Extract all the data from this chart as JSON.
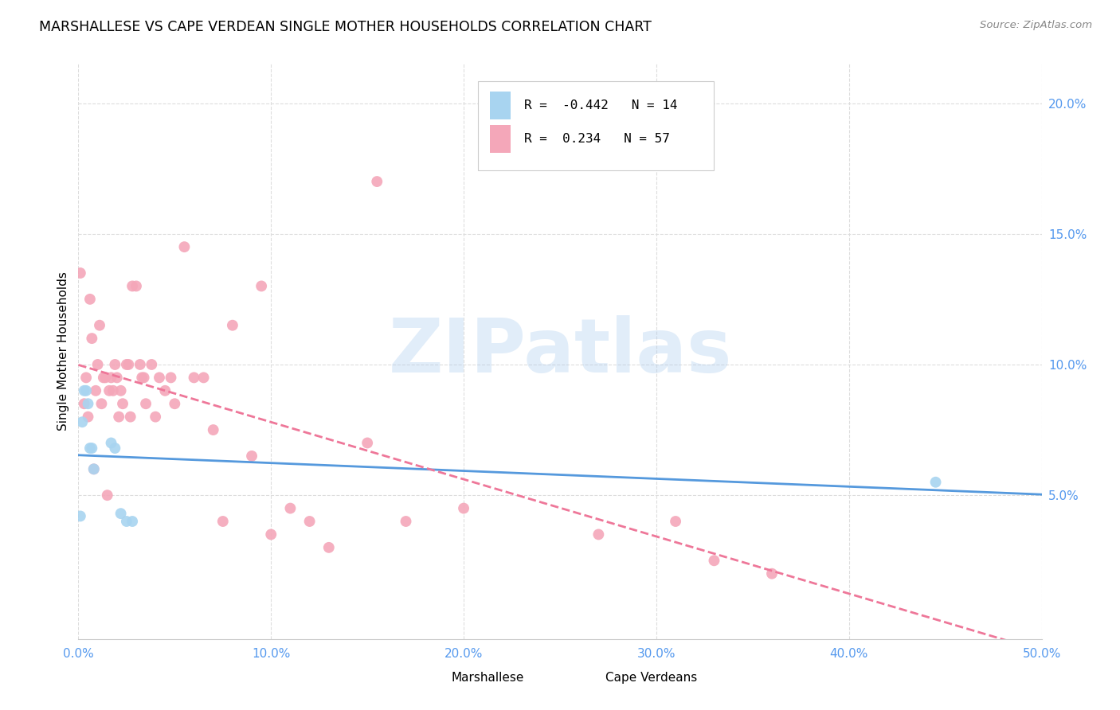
{
  "title": "MARSHALLESE VS CAPE VERDEAN SINGLE MOTHER HOUSEHOLDS CORRELATION CHART",
  "source": "Source: ZipAtlas.com",
  "ylabel": "Single Mother Households",
  "marshallese_R": -0.442,
  "marshallese_N": 14,
  "capeverdean_R": 0.234,
  "capeverdean_N": 57,
  "marshallese_color": "#a8d4f0",
  "capeverdean_color": "#f4a7b9",
  "marshallese_line_color": "#5599dd",
  "capeverdean_line_color": "#ee7799",
  "watermark_text": "ZIPatlas",
  "xlim": [
    0.0,
    0.5
  ],
  "ylim": [
    -0.005,
    0.215
  ],
  "x_ticks": [
    0.0,
    0.1,
    0.2,
    0.3,
    0.4,
    0.5
  ],
  "y_ticks_right": [
    0.05,
    0.1,
    0.15,
    0.2
  ],
  "marshallese_x": [
    0.001,
    0.002,
    0.003,
    0.004,
    0.005,
    0.006,
    0.007,
    0.008,
    0.017,
    0.019,
    0.022,
    0.025,
    0.028,
    0.445
  ],
  "marshallese_y": [
    0.042,
    0.078,
    0.09,
    0.09,
    0.085,
    0.068,
    0.068,
    0.06,
    0.07,
    0.068,
    0.043,
    0.04,
    0.04,
    0.055
  ],
  "capeverdean_x": [
    0.001,
    0.003,
    0.004,
    0.005,
    0.006,
    0.007,
    0.008,
    0.009,
    0.01,
    0.011,
    0.012,
    0.013,
    0.014,
    0.015,
    0.016,
    0.017,
    0.018,
    0.019,
    0.02,
    0.021,
    0.022,
    0.023,
    0.025,
    0.026,
    0.027,
    0.028,
    0.03,
    0.032,
    0.033,
    0.034,
    0.035,
    0.038,
    0.04,
    0.042,
    0.045,
    0.048,
    0.05,
    0.055,
    0.06,
    0.065,
    0.07,
    0.075,
    0.08,
    0.09,
    0.095,
    0.1,
    0.11,
    0.12,
    0.13,
    0.15,
    0.155,
    0.17,
    0.2,
    0.27,
    0.31,
    0.33,
    0.36
  ],
  "capeverdean_y": [
    0.135,
    0.085,
    0.095,
    0.08,
    0.125,
    0.11,
    0.06,
    0.09,
    0.1,
    0.115,
    0.085,
    0.095,
    0.095,
    0.05,
    0.09,
    0.095,
    0.09,
    0.1,
    0.095,
    0.08,
    0.09,
    0.085,
    0.1,
    0.1,
    0.08,
    0.13,
    0.13,
    0.1,
    0.095,
    0.095,
    0.085,
    0.1,
    0.08,
    0.095,
    0.09,
    0.095,
    0.085,
    0.145,
    0.095,
    0.095,
    0.075,
    0.04,
    0.115,
    0.065,
    0.13,
    0.035,
    0.045,
    0.04,
    0.03,
    0.07,
    0.17,
    0.04,
    0.045,
    0.035,
    0.04,
    0.025,
    0.02
  ],
  "legend_R_marshallese": "R = -0.442",
  "legend_N_marshallese": "N = 14",
  "legend_R_capeverdean": "R =  0.234",
  "legend_N_capeverdean": "N = 57"
}
